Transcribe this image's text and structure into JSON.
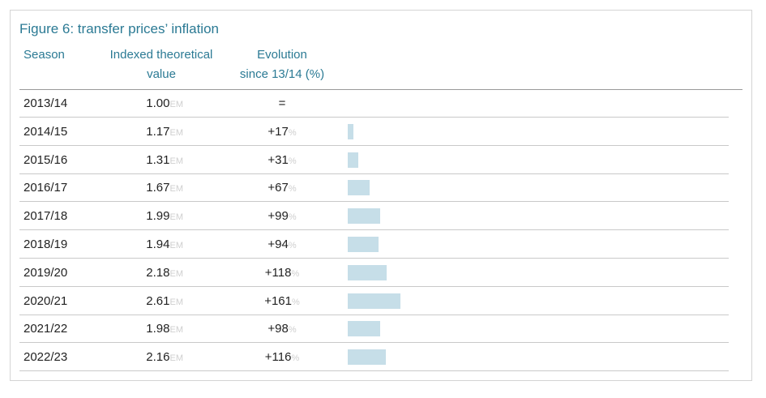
{
  "chart_data": {
    "type": "table",
    "title": "Figure 6: transfer prices’ inflation",
    "columns": [
      "Season",
      "Indexed theoretical value",
      "Evolution since 13/14 (%)"
    ],
    "column_lines": [
      [
        "Season"
      ],
      [
        "Indexed theoretical",
        "value"
      ],
      [
        "Evolution",
        "since 13/14 (%)"
      ]
    ],
    "value_unit": "EM",
    "evolution_unit": "%",
    "bar_color": "#c6dee8",
    "rows": [
      {
        "season": "2013/14",
        "value": "1.00",
        "evolution": "=",
        "pct": 0
      },
      {
        "season": "2014/15",
        "value": "1.17",
        "evolution": "+17",
        "pct": 17
      },
      {
        "season": "2015/16",
        "value": "1.31",
        "evolution": "+31",
        "pct": 31
      },
      {
        "season": "2016/17",
        "value": "1.67",
        "evolution": "+67",
        "pct": 67
      },
      {
        "season": "2017/18",
        "value": "1.99",
        "evolution": "+99",
        "pct": 99
      },
      {
        "season": "2018/19",
        "value": "1.94",
        "evolution": "+94",
        "pct": 94
      },
      {
        "season": "2019/20",
        "value": "2.18",
        "evolution": "+118",
        "pct": 118
      },
      {
        "season": "2020/21",
        "value": "2.61",
        "evolution": "+161",
        "pct": 161
      },
      {
        "season": "2021/22",
        "value": "1.98",
        "evolution": "+98",
        "pct": 98
      },
      {
        "season": "2022/23",
        "value": "2.16",
        "evolution": "+116",
        "pct": 116
      }
    ]
  }
}
